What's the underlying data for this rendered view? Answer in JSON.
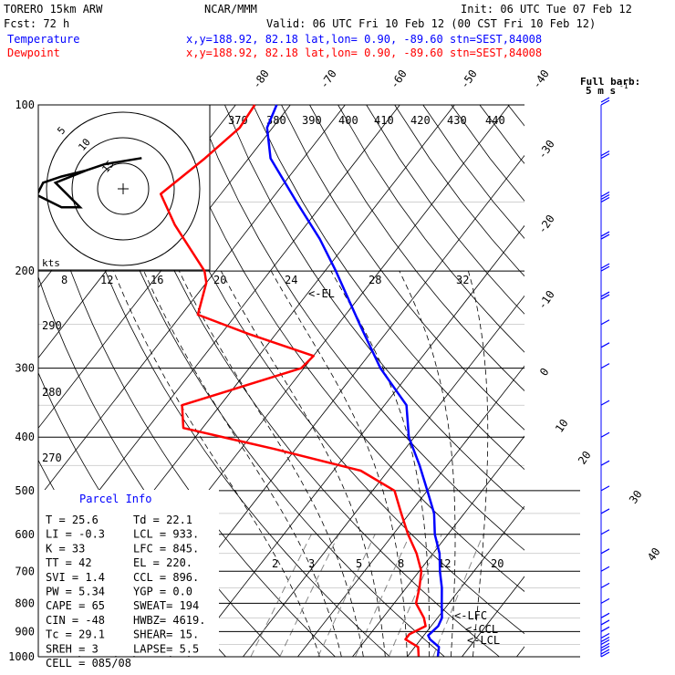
{
  "header": {
    "model": "TORERO  15km ARW",
    "center": "NCAR/MMM",
    "init": "Init: 06 UTC Tue 07 Feb 12",
    "fcst": "Fcst:   72 h",
    "valid": "Valid: 06 UTC Fri 10 Feb 12 (00 CST Fri 10 Feb 12)",
    "temp_label": "Temperature",
    "dew_label": "Dewpoint",
    "loc_line": "x,y=188.92, 82.18   lat,lon=  0.90, -89.60  stn=SEST,84008"
  },
  "wind_key": {
    "line1": "Full barb:",
    "line2": "5 m s",
    "unit_exp": "-1"
  },
  "hodograph": {
    "kts_label": "kts",
    "ring_labels": [
      "5",
      "10",
      "15"
    ]
  },
  "colors": {
    "temperature": "#ff0000",
    "dewpoint": "#0000ff",
    "axes": "#000000",
    "isotherm": "#000000",
    "mixing_ratio": "#888888",
    "wind": "#0000ff"
  },
  "parcel_info": {
    "title": "Parcel Info",
    "rows": [
      [
        "T   =  25.6",
        "Td  =  22.1"
      ],
      [
        "LI  =  -0.3",
        "LCL =  933."
      ],
      [
        "K   =    33",
        "LFC =  845."
      ],
      [
        "TT  =    42",
        "EL  =  220."
      ],
      [
        "SVI =   1.4",
        "CCL =  896."
      ],
      [
        "PW  =  5.34",
        "YGP =   0.0"
      ],
      [
        "CAPE =   65",
        "SWEAT=  194"
      ],
      [
        "CIN  =  -48",
        "HWBZ= 4619."
      ],
      [
        "Tc  =  29.1",
        "SHEAR=  15."
      ],
      [
        "SREH =    3",
        "LAPSE=  5.5"
      ],
      [
        "CELL = 085/08",
        ""
      ]
    ]
  },
  "chart_data": {
    "type": "skew-t",
    "pressure_levels": [
      100,
      200,
      300,
      400,
      500,
      600,
      700,
      800,
      900,
      1000
    ],
    "pressure_labels": [
      "100",
      "200",
      "300",
      "400",
      "500",
      "600",
      "700",
      "800",
      "900",
      "1000"
    ],
    "isotherm_labels": [
      "-80",
      "-70",
      "-60",
      "-50",
      "-40",
      "-30",
      "-20",
      "-10",
      "0",
      "10",
      "20",
      "30",
      "40"
    ],
    "theta_labels": [
      "370",
      "380",
      "390",
      "400",
      "410",
      "420",
      "430",
      "440"
    ],
    "theta_row2_labels": [
      "8",
      "12",
      "16",
      "20",
      "24",
      "28",
      "32"
    ],
    "theta_left_labels": [
      "290",
      "280",
      "270"
    ],
    "mixing_ratio_labels": [
      "2",
      "3",
      "5",
      "8",
      "12",
      "20"
    ],
    "markers": [
      "<-EL",
      "<-LFC",
      "<-CCL",
      "<-LCL"
    ],
    "temperature": [
      {
        "p": 1000,
        "t": 25.6
      },
      {
        "p": 960,
        "t": 24.4
      },
      {
        "p": 930,
        "t": 21.7
      },
      {
        "p": 915,
        "t": 20.8
      },
      {
        "p": 880,
        "t": 21.3
      },
      {
        "p": 850,
        "t": 20.8
      },
      {
        "p": 800,
        "t": 18.7
      },
      {
        "p": 750,
        "t": 16.5
      },
      {
        "p": 700,
        "t": 13.8
      },
      {
        "p": 650,
        "t": 11.2
      },
      {
        "p": 600,
        "t": 7.6
      },
      {
        "p": 550,
        "t": 4.5
      },
      {
        "p": 500,
        "t": 0.0
      },
      {
        "p": 450,
        "t": -5.0
      },
      {
        "p": 400,
        "t": -11.0
      },
      {
        "p": 350,
        "t": -16.0
      },
      {
        "p": 300,
        "t": -26.0
      },
      {
        "p": 250,
        "t": -36.0
      },
      {
        "p": 200,
        "t": -48.0
      },
      {
        "p": 175,
        "t": -55.5
      },
      {
        "p": 150,
        "t": -65.0
      },
      {
        "p": 125,
        "t": -76.0
      },
      {
        "p": 110,
        "t": -81.0
      },
      {
        "p": 100,
        "t": -82.5
      }
    ],
    "dewpoint": [
      {
        "p": 1000,
        "t": 22.1
      },
      {
        "p": 960,
        "t": 20.6
      },
      {
        "p": 930,
        "t": 17.2
      },
      {
        "p": 910,
        "t": 17.2
      },
      {
        "p": 880,
        "t": 19.0
      },
      {
        "p": 850,
        "t": 17.5
      },
      {
        "p": 800,
        "t": 14.0
      },
      {
        "p": 750,
        "t": 12.4
      },
      {
        "p": 700,
        "t": 10.4
      },
      {
        "p": 650,
        "t": 7.0
      },
      {
        "p": 600,
        "t": 2.7
      },
      {
        "p": 550,
        "t": -1.5
      },
      {
        "p": 500,
        "t": -6.0
      },
      {
        "p": 460,
        "t": -15.0
      },
      {
        "p": 420,
        "t": -34.0
      },
      {
        "p": 385,
        "t": -53.5
      },
      {
        "p": 350,
        "t": -57.0
      },
      {
        "p": 300,
        "t": -40.5
      },
      {
        "p": 285,
        "t": -40.0
      },
      {
        "p": 260,
        "t": -55.0
      },
      {
        "p": 240,
        "t": -67.0
      },
      {
        "p": 210,
        "t": -70.0
      },
      {
        "p": 200,
        "t": -72.0
      },
      {
        "p": 165,
        "t": -84.0
      },
      {
        "p": 145,
        "t": -91.0
      },
      {
        "p": 125,
        "t": -88.0
      },
      {
        "p": 110,
        "t": -86.0
      },
      {
        "p": 100,
        "t": -86.5
      }
    ],
    "wind_barbs": [
      {
        "p": 1000,
        "dir": 175,
        "spd": 9
      },
      {
        "p": 975,
        "dir": 170,
        "spd": 9
      },
      {
        "p": 950,
        "dir": 175,
        "spd": 8
      },
      {
        "p": 925,
        "dir": 175,
        "spd": 7
      },
      {
        "p": 900,
        "dir": 180,
        "spd": 6
      },
      {
        "p": 875,
        "dir": 175,
        "spd": 5
      },
      {
        "p": 850,
        "dir": 160,
        "spd": 4
      },
      {
        "p": 800,
        "dir": 130,
        "spd": 4
      },
      {
        "p": 750,
        "dir": 110,
        "spd": 5
      },
      {
        "p": 700,
        "dir": 100,
        "spd": 6
      },
      {
        "p": 650,
        "dir": 95,
        "spd": 6
      },
      {
        "p": 600,
        "dir": 90,
        "spd": 7
      },
      {
        "p": 550,
        "dir": 90,
        "spd": 6
      },
      {
        "p": 500,
        "dir": 95,
        "spd": 5
      },
      {
        "p": 450,
        "dir": 100,
        "spd": 5
      },
      {
        "p": 400,
        "dir": 95,
        "spd": 4
      },
      {
        "p": 350,
        "dir": 90,
        "spd": 4
      },
      {
        "p": 300,
        "dir": 90,
        "spd": 5
      },
      {
        "p": 275,
        "dir": 85,
        "spd": 6
      },
      {
        "p": 250,
        "dir": 80,
        "spd": 7
      },
      {
        "p": 225,
        "dir": 80,
        "spd": 8
      },
      {
        "p": 200,
        "dir": 80,
        "spd": 10
      },
      {
        "p": 175,
        "dir": 80,
        "spd": 11
      },
      {
        "p": 150,
        "dir": 80,
        "spd": 13
      },
      {
        "p": 125,
        "dir": 80,
        "spd": 12
      },
      {
        "p": 100,
        "dir": 75,
        "spd": 10
      }
    ],
    "hodograph_trace": [
      {
        "u": -3.0,
        "v": 1.5
      },
      {
        "u": -5.0,
        "v": 1.0
      },
      {
        "u": -6.5,
        "v": 0.5
      },
      {
        "u": -7.0,
        "v": -0.5
      },
      {
        "u": -5.0,
        "v": -1.5
      },
      {
        "u": -3.5,
        "v": -1.5
      },
      {
        "u": -4.5,
        "v": -0.5
      },
      {
        "u": -5.5,
        "v": 0.5
      },
      {
        "u": -3.0,
        "v": 1.5
      },
      {
        "u": -1.5,
        "v": 2.0
      },
      {
        "u": 1.5,
        "v": 2.5
      }
    ]
  }
}
